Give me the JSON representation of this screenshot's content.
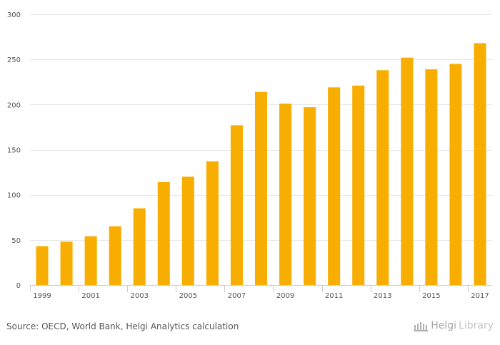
{
  "chart_data": {
    "type": "bar",
    "categories": [
      "1999",
      "2000",
      "2001",
      "2002",
      "2003",
      "2004",
      "2005",
      "2006",
      "2007",
      "2008",
      "2009",
      "2010",
      "2011",
      "2012",
      "2013",
      "2014",
      "2015",
      "2016",
      "2017"
    ],
    "values": [
      43,
      48,
      54,
      65,
      85,
      114,
      120,
      137,
      177,
      214,
      201,
      197,
      219,
      221,
      238,
      252,
      239,
      245,
      268
    ],
    "x_tick_labels": [
      "1999",
      "2001",
      "2003",
      "2005",
      "2007",
      "2009",
      "2011",
      "2013",
      "2015",
      "2017"
    ],
    "y_ticks": [
      0,
      50,
      100,
      150,
      200,
      250,
      300
    ],
    "ylim": [
      0,
      300
    ],
    "title": "",
    "xlabel": "",
    "ylabel": "",
    "grid": true,
    "bar_color": "#f7ae00",
    "grid_color": "#e6e6e6"
  },
  "footer": {
    "source": "Source: OECD, World Bank, Helgi Analytics calculation",
    "logo_brand": "Helgi",
    "logo_suffix": "Library"
  }
}
